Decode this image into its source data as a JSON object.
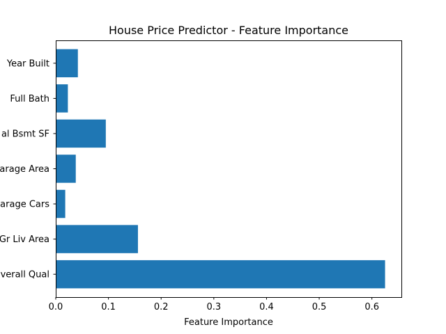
{
  "chart_data": {
    "type": "bar",
    "orientation": "horizontal",
    "title": "House Price Predictor - Feature Importance",
    "xlabel": "Feature Importance",
    "ylabel": "",
    "categories": [
      "Overall Qual",
      "Gr Liv Area",
      "Garage Cars",
      "Garage Area",
      "Total Bsmt SF",
      "Full Bath",
      "Year Built"
    ],
    "category_labels_visible": [
      "verall Qual",
      "Gr Liv Area",
      "arage Cars",
      "arage Area",
      "al Bsmt SF",
      "Full Bath",
      "Year Built"
    ],
    "values": [
      0.625,
      0.156,
      0.018,
      0.038,
      0.095,
      0.023,
      0.042
    ],
    "xlim": [
      0,
      0.656
    ],
    "xticks": [
      0.0,
      0.1,
      0.2,
      0.3,
      0.4,
      0.5,
      0.6
    ],
    "xtick_labels": [
      "0.0",
      "0.1",
      "0.2",
      "0.3",
      "0.4",
      "0.5",
      "0.6"
    ],
    "grid": false,
    "legend": "none",
    "bar_color": "#1f77b4"
  }
}
